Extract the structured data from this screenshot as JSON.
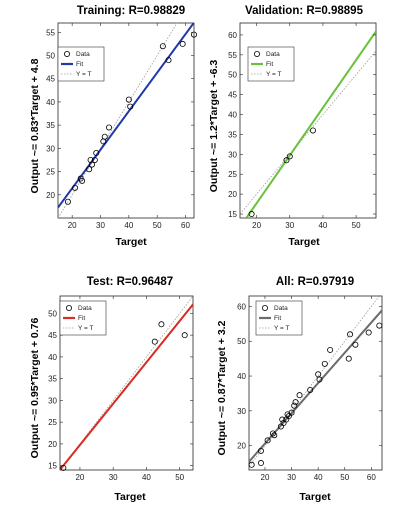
{
  "colors": {
    "background": "#ffffff",
    "axis": "#262626",
    "identity_line": "#9a9a9a",
    "marker": "#000000",
    "fit_training": "#1f3aa8",
    "fit_validation": "#6ac13a",
    "fit_test": "#d92b23",
    "fit_all": "#6b6b6b"
  },
  "chart_data": [
    {
      "type": "scatter",
      "title": "Training: R=0.98829",
      "xlabel": "Target",
      "ylabel": "Output ~= 0.83*Target + 4.8",
      "xlim": [
        15,
        63
      ],
      "ylim": [
        15,
        57
      ],
      "xticks": [
        20,
        30,
        40,
        50,
        60
      ],
      "yticks": [
        20,
        25,
        30,
        35,
        40,
        45,
        50,
        55
      ],
      "grid": false,
      "legend_placement": "top-left",
      "legend": [
        "Data",
        "Fit",
        "Y = T"
      ],
      "fit": {
        "slope": 0.83,
        "intercept": 4.8
      },
      "fit_color": "#1f3aa8",
      "points": [
        [
          18.5,
          18.5
        ],
        [
          21,
          21.5
        ],
        [
          23,
          23.5
        ],
        [
          23.5,
          23
        ],
        [
          26,
          25.5
        ],
        [
          26.5,
          27.5
        ],
        [
          27,
          26.5
        ],
        [
          28,
          27.5
        ],
        [
          28.5,
          29
        ],
        [
          31,
          31.5
        ],
        [
          31.5,
          32.5
        ],
        [
          33,
          34.5
        ],
        [
          40,
          40.5
        ],
        [
          40.5,
          39
        ],
        [
          52,
          52
        ],
        [
          54,
          49
        ],
        [
          59,
          52.5
        ],
        [
          63,
          54.5
        ]
      ]
    },
    {
      "type": "scatter",
      "title": "Validation: R=0.98895",
      "xlabel": "Target",
      "ylabel": "Output ~= 1.2*Target + -6.3",
      "xlim": [
        15,
        56
      ],
      "ylim": [
        14,
        63
      ],
      "xticks": [
        20,
        30,
        40,
        50
      ],
      "yticks": [
        15,
        20,
        25,
        30,
        35,
        40,
        45,
        50,
        55,
        60
      ],
      "grid": false,
      "legend_placement": "top-left",
      "legend": [
        "Data",
        "Fit",
        "Y = T"
      ],
      "fit": {
        "slope": 1.2,
        "intercept": -6.3
      },
      "fit_color": "#6ac13a",
      "points": [
        [
          18.5,
          15
        ],
        [
          29,
          28.5
        ],
        [
          30,
          29.5
        ],
        [
          37,
          36
        ]
      ]
    },
    {
      "type": "scatter",
      "title": "Test: R=0.96487",
      "xlabel": "Target",
      "ylabel": "Output ~= 0.95*Target + 0.76",
      "xlim": [
        14,
        54
      ],
      "ylim": [
        14,
        54
      ],
      "xticks": [
        20,
        30,
        40,
        50
      ],
      "yticks": [
        15,
        20,
        25,
        30,
        35,
        40,
        45,
        50
      ],
      "grid": false,
      "legend_placement": "top-left",
      "legend": [
        "Data",
        "Fit",
        "Y = T"
      ],
      "fit": {
        "slope": 0.95,
        "intercept": 0.76
      },
      "fit_color": "#d92b23",
      "points": [
        [
          15,
          14.5
        ],
        [
          42.5,
          43.5
        ],
        [
          44.5,
          47.5
        ],
        [
          51.5,
          45
        ]
      ]
    },
    {
      "type": "scatter",
      "title": "All: R=0.97919",
      "xlabel": "Target",
      "ylabel": "Output ~= 0.87*Target + 3.2",
      "xlim": [
        14,
        64
      ],
      "ylim": [
        13,
        63
      ],
      "xticks": [
        20,
        30,
        40,
        50,
        60
      ],
      "yticks": [
        20,
        30,
        40,
        50,
        60
      ],
      "grid": false,
      "legend_placement": "top-left",
      "legend": [
        "Data",
        "Fit",
        "Y = T"
      ],
      "fit": {
        "slope": 0.87,
        "intercept": 3.2
      },
      "fit_color": "#6b6b6b",
      "points": [
        [
          15,
          14.5
        ],
        [
          18.5,
          15
        ],
        [
          18.5,
          18.5
        ],
        [
          21,
          21.5
        ],
        [
          23,
          23.5
        ],
        [
          23.5,
          23
        ],
        [
          26,
          25.5
        ],
        [
          26.5,
          27.5
        ],
        [
          27,
          26.5
        ],
        [
          28,
          27.5
        ],
        [
          28.5,
          29
        ],
        [
          29,
          28.5
        ],
        [
          30,
          29.5
        ],
        [
          31,
          31.5
        ],
        [
          31.5,
          32.5
        ],
        [
          33,
          34.5
        ],
        [
          37,
          36
        ],
        [
          40,
          40.5
        ],
        [
          40.5,
          39
        ],
        [
          42.5,
          43.5
        ],
        [
          44.5,
          47.5
        ],
        [
          51.5,
          45
        ],
        [
          52,
          52
        ],
        [
          54,
          49
        ],
        [
          59,
          52.5
        ],
        [
          63,
          54.5
        ]
      ]
    }
  ]
}
